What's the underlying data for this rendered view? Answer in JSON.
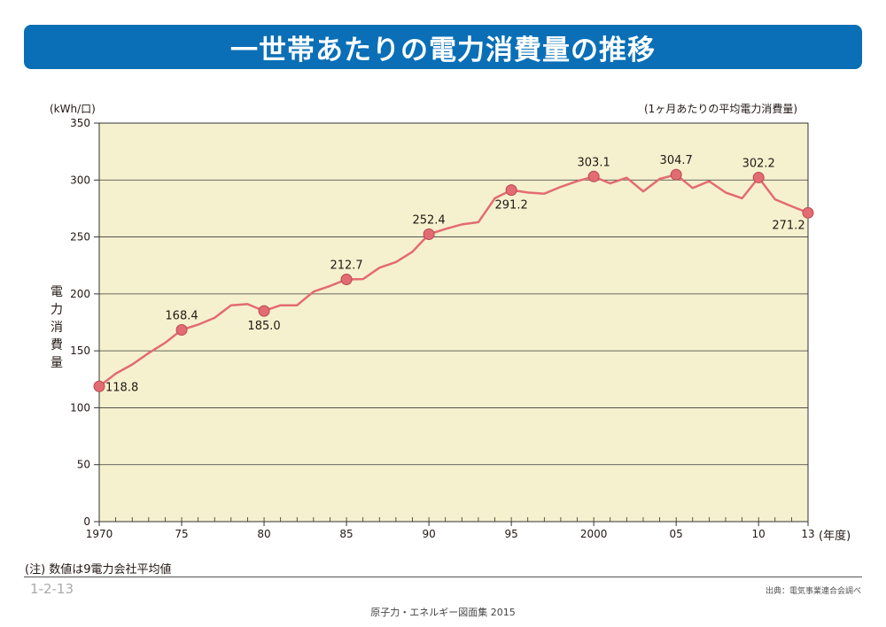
{
  "title": "一世帯あたりの電力消費量の推移",
  "unit_label": "(kWh/口)",
  "subtitle": "(1ヶ月あたりの平均電力消費量)",
  "y_axis_title": "電力消費量",
  "x_unit": "(年度)",
  "note": "(注) 数値は9電力会社平均値",
  "page_number": "1-2-13",
  "source": "出典：電気事業連合会調べ",
  "book_title": "原子力・エネルギー図面集 2015",
  "colors": {
    "banner": "#0a6fb6",
    "plot_bg": "#f5f1ce",
    "line": "#e36b72",
    "marker": "#e36b72"
  },
  "chart_data": {
    "type": "line",
    "title": "一世帯あたりの電力消費量の推移",
    "ylabel": "電力消費量",
    "xlabel": "",
    "xlim": [
      1970,
      2013
    ],
    "ylim": [
      0,
      350
    ],
    "yticks": [
      0,
      50,
      100,
      150,
      200,
      250,
      300,
      350
    ],
    "xtick_labels": [
      {
        "x": 1970,
        "label": "1970"
      },
      {
        "x": 1975,
        "label": "75"
      },
      {
        "x": 1980,
        "label": "80"
      },
      {
        "x": 1985,
        "label": "85"
      },
      {
        "x": 1990,
        "label": "90"
      },
      {
        "x": 1995,
        "label": "95"
      },
      {
        "x": 2000,
        "label": "2000"
      },
      {
        "x": 2005,
        "label": "05"
      },
      {
        "x": 2010,
        "label": "10"
      },
      {
        "x": 2013,
        "label": "13"
      }
    ],
    "grid": true,
    "x": [
      1970,
      1971,
      1972,
      1973,
      1974,
      1975,
      1976,
      1977,
      1978,
      1979,
      1980,
      1981,
      1982,
      1983,
      1984,
      1985,
      1986,
      1987,
      1988,
      1989,
      1990,
      1991,
      1992,
      1993,
      1994,
      1995,
      1996,
      1997,
      1998,
      1999,
      2000,
      2001,
      2002,
      2003,
      2004,
      2005,
      2006,
      2007,
      2008,
      2009,
      2010,
      2011,
      2012,
      2013
    ],
    "series": [
      {
        "values": [
          118.8,
          130,
          138,
          148,
          157,
          168.4,
          173,
          179,
          190,
          191,
          185.0,
          190,
          190,
          202,
          207,
          212.7,
          213,
          223,
          228,
          237,
          252.4,
          257,
          261,
          263,
          284,
          291.2,
          289,
          288,
          294,
          299,
          303.1,
          297,
          302,
          290,
          301,
          304.7,
          293,
          299,
          289,
          284,
          302.2,
          283,
          277,
          271.2
        ]
      }
    ],
    "annotations": [
      {
        "x": 1970,
        "y": 118.8,
        "label": "118.8",
        "pos": "right"
      },
      {
        "x": 1975,
        "y": 168.4,
        "label": "168.4",
        "pos": "above"
      },
      {
        "x": 1980,
        "y": 185.0,
        "label": "185.0",
        "pos": "below"
      },
      {
        "x": 1985,
        "y": 212.7,
        "label": "212.7",
        "pos": "above"
      },
      {
        "x": 1990,
        "y": 252.4,
        "label": "252.4",
        "pos": "above"
      },
      {
        "x": 1995,
        "y": 291.2,
        "label": "291.2",
        "pos": "below"
      },
      {
        "x": 2000,
        "y": 303.1,
        "label": "303.1",
        "pos": "above"
      },
      {
        "x": 2005,
        "y": 304.7,
        "label": "304.7",
        "pos": "above"
      },
      {
        "x": 2010,
        "y": 302.2,
        "label": "302.2",
        "pos": "above"
      },
      {
        "x": 2013,
        "y": 271.2,
        "label": "271.2",
        "pos": "below-left"
      }
    ]
  }
}
